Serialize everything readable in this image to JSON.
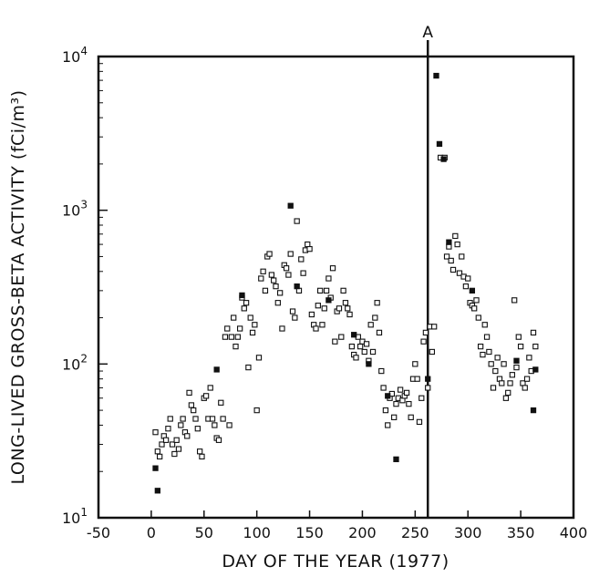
{
  "chart_data": {
    "type": "scatter",
    "title": "",
    "xlabel": "DAY OF THE YEAR (1977)",
    "ylabel": "LONG-LIVED GROSS-BETA ACTIVITY (fCi/m³)",
    "xlim": [
      -50,
      400
    ],
    "ylim": [
      10,
      10000
    ],
    "yscale": "log",
    "grid": false,
    "x_ticks": [
      "-50",
      "0",
      "50",
      "100",
      "150",
      "200",
      "250",
      "300",
      "350",
      "400"
    ],
    "y_ticks": [
      {
        "value": 10,
        "base": "10",
        "exp": "1"
      },
      {
        "value": 100,
        "base": "10",
        "exp": "2"
      },
      {
        "value": 1000,
        "base": "10",
        "exp": "3"
      },
      {
        "value": 10000,
        "base": "10",
        "exp": "4"
      }
    ],
    "vertical_marker": {
      "x": 262,
      "label": "A"
    },
    "series": [
      {
        "marker": "open-square",
        "points": [
          [
            4,
            36
          ],
          [
            6,
            27
          ],
          [
            8,
            25
          ],
          [
            10,
            30
          ],
          [
            12,
            34
          ],
          [
            14,
            32
          ],
          [
            16,
            38
          ],
          [
            18,
            44
          ],
          [
            20,
            30
          ],
          [
            22,
            26
          ],
          [
            24,
            32
          ],
          [
            26,
            28
          ],
          [
            28,
            40
          ],
          [
            30,
            44
          ],
          [
            32,
            36
          ],
          [
            34,
            34
          ],
          [
            36,
            65
          ],
          [
            38,
            54
          ],
          [
            40,
            50
          ],
          [
            42,
            44
          ],
          [
            44,
            38
          ],
          [
            46,
            27
          ],
          [
            48,
            25
          ],
          [
            50,
            60
          ],
          [
            52,
            62
          ],
          [
            54,
            44
          ],
          [
            56,
            70
          ],
          [
            58,
            44
          ],
          [
            60,
            40
          ],
          [
            62,
            33
          ],
          [
            64,
            32
          ],
          [
            66,
            56
          ],
          [
            68,
            44
          ],
          [
            70,
            150
          ],
          [
            72,
            170
          ],
          [
            74,
            40
          ],
          [
            76,
            150
          ],
          [
            78,
            200
          ],
          [
            80,
            130
          ],
          [
            82,
            150
          ],
          [
            84,
            170
          ],
          [
            86,
            270
          ],
          [
            88,
            230
          ],
          [
            90,
            250
          ],
          [
            92,
            95
          ],
          [
            94,
            200
          ],
          [
            96,
            160
          ],
          [
            98,
            180
          ],
          [
            100,
            50
          ],
          [
            102,
            110
          ],
          [
            104,
            360
          ],
          [
            106,
            400
          ],
          [
            108,
            300
          ],
          [
            110,
            500
          ],
          [
            112,
            520
          ],
          [
            114,
            380
          ],
          [
            116,
            350
          ],
          [
            118,
            320
          ],
          [
            120,
            250
          ],
          [
            122,
            290
          ],
          [
            124,
            170
          ],
          [
            126,
            440
          ],
          [
            128,
            420
          ],
          [
            130,
            380
          ],
          [
            132,
            520
          ],
          [
            134,
            220
          ],
          [
            136,
            200
          ],
          [
            138,
            850
          ],
          [
            140,
            300
          ],
          [
            142,
            480
          ],
          [
            144,
            390
          ],
          [
            146,
            550
          ],
          [
            148,
            600
          ],
          [
            150,
            560
          ],
          [
            152,
            210
          ],
          [
            154,
            180
          ],
          [
            156,
            170
          ],
          [
            158,
            240
          ],
          [
            160,
            300
          ],
          [
            162,
            180
          ],
          [
            164,
            230
          ],
          [
            166,
            300
          ],
          [
            168,
            360
          ],
          [
            170,
            270
          ],
          [
            172,
            420
          ],
          [
            174,
            140
          ],
          [
            176,
            220
          ],
          [
            178,
            230
          ],
          [
            180,
            150
          ],
          [
            182,
            300
          ],
          [
            184,
            250
          ],
          [
            186,
            230
          ],
          [
            188,
            210
          ],
          [
            190,
            130
          ],
          [
            192,
            115
          ],
          [
            194,
            110
          ],
          [
            196,
            150
          ],
          [
            198,
            130
          ],
          [
            200,
            140
          ],
          [
            202,
            120
          ],
          [
            204,
            135
          ],
          [
            206,
            105
          ],
          [
            208,
            180
          ],
          [
            210,
            120
          ],
          [
            212,
            200
          ],
          [
            214,
            250
          ],
          [
            216,
            160
          ],
          [
            218,
            90
          ],
          [
            220,
            70
          ],
          [
            222,
            50
          ],
          [
            224,
            40
          ],
          [
            226,
            60
          ],
          [
            228,
            64
          ],
          [
            230,
            45
          ],
          [
            232,
            55
          ],
          [
            234,
            60
          ],
          [
            236,
            68
          ],
          [
            238,
            58
          ],
          [
            240,
            62
          ],
          [
            242,
            65
          ],
          [
            244,
            55
          ],
          [
            246,
            45
          ],
          [
            248,
            80
          ],
          [
            250,
            100
          ],
          [
            252,
            80
          ],
          [
            254,
            42
          ],
          [
            256,
            60
          ],
          [
            258,
            140
          ],
          [
            260,
            160
          ],
          [
            262,
            70
          ],
          [
            264,
            175
          ],
          [
            266,
            120
          ],
          [
            268,
            175
          ],
          [
            274,
            2200
          ],
          [
            278,
            2200
          ],
          [
            280,
            500
          ],
          [
            282,
            580
          ],
          [
            284,
            470
          ],
          [
            286,
            410
          ],
          [
            288,
            680
          ],
          [
            290,
            600
          ],
          [
            292,
            390
          ],
          [
            294,
            500
          ],
          [
            296,
            370
          ],
          [
            298,
            320
          ],
          [
            300,
            360
          ],
          [
            302,
            250
          ],
          [
            304,
            240
          ],
          [
            306,
            230
          ],
          [
            308,
            260
          ],
          [
            310,
            200
          ],
          [
            312,
            130
          ],
          [
            314,
            115
          ],
          [
            316,
            180
          ],
          [
            318,
            150
          ],
          [
            320,
            120
          ],
          [
            322,
            100
          ],
          [
            324,
            70
          ],
          [
            326,
            90
          ],
          [
            328,
            110
          ],
          [
            330,
            80
          ],
          [
            332,
            75
          ],
          [
            334,
            100
          ],
          [
            336,
            60
          ],
          [
            338,
            65
          ],
          [
            340,
            75
          ],
          [
            342,
            85
          ],
          [
            344,
            260
          ],
          [
            346,
            95
          ],
          [
            348,
            150
          ],
          [
            350,
            130
          ],
          [
            352,
            75
          ],
          [
            354,
            70
          ],
          [
            356,
            80
          ],
          [
            358,
            110
          ],
          [
            360,
            90
          ],
          [
            362,
            160
          ],
          [
            364,
            130
          ]
        ]
      },
      {
        "marker": "filled-square",
        "points": [
          [
            4,
            21
          ],
          [
            6,
            15
          ],
          [
            62,
            92
          ],
          [
            86,
            280
          ],
          [
            132,
            1070
          ],
          [
            138,
            320
          ],
          [
            168,
            260
          ],
          [
            192,
            155
          ],
          [
            206,
            100
          ],
          [
            224,
            62
          ],
          [
            232,
            24
          ],
          [
            262,
            80
          ],
          [
            270,
            7500
          ],
          [
            273,
            2700
          ],
          [
            277,
            2150
          ],
          [
            282,
            620
          ],
          [
            304,
            300
          ],
          [
            346,
            105
          ],
          [
            362,
            50
          ],
          [
            364,
            92
          ]
        ]
      }
    ]
  }
}
